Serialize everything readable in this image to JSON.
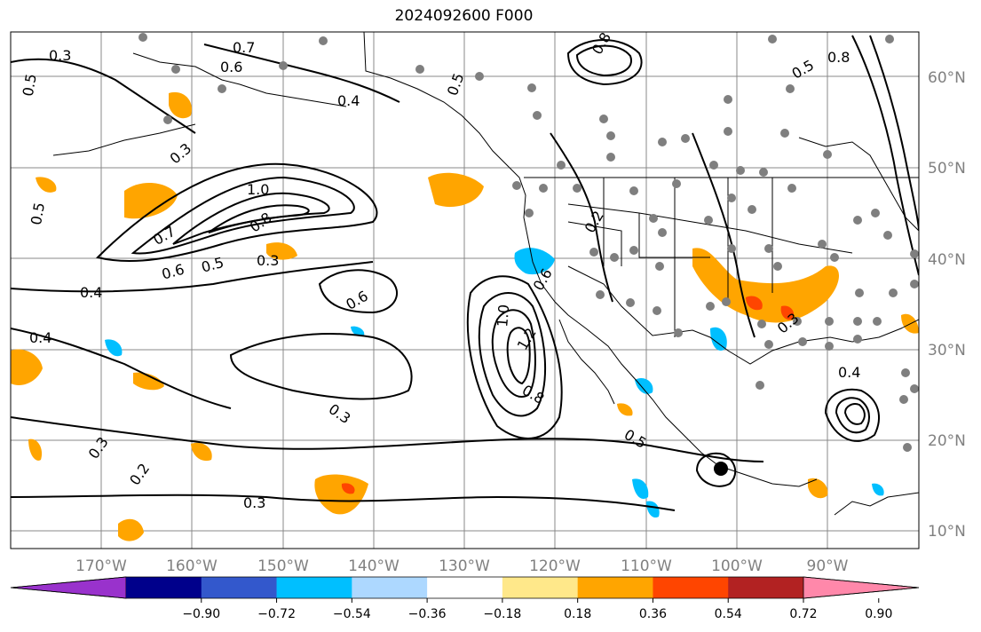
{
  "title": "2024092600 F000",
  "lat_labels": [
    "60°N",
    "50°N",
    "40°N",
    "30°N",
    "20°N",
    "10°N"
  ],
  "lon_labels": [
    "170°W",
    "160°W",
    "150°W",
    "140°W",
    "130°W",
    "120°W",
    "110°W",
    "100°W",
    "90°W"
  ],
  "colorbar": {
    "colors": [
      "#9932cc",
      "#00008b",
      "#3358cc",
      "#00bfff",
      "#add8ff",
      "#ffffff",
      "#ffe88a",
      "#ffa500",
      "#ff4500",
      "#b22222",
      "#ff88aa"
    ],
    "tick_labels": [
      "−0.90",
      "−0.72",
      "−0.54",
      "−0.36",
      "−0.18",
      "0.18",
      "0.36",
      "0.54",
      "0.72",
      "0.90"
    ]
  },
  "contour_labels": [
    "0.3",
    "0.7",
    "0.6",
    "0.5",
    "0.4",
    "0.3",
    "1.0",
    "0.8",
    "0.7",
    "0.6",
    "0.5",
    "0.3",
    "0.4",
    "0.6",
    "0.5",
    "0.4",
    "0.3",
    "0.3",
    "0.2",
    "0.3",
    "1.0",
    "1.2",
    "0.8",
    "0.5",
    "0.2",
    "0.6",
    "0.8",
    "0.5",
    "0.4",
    "0.8",
    "0.5",
    "0.3"
  ]
}
